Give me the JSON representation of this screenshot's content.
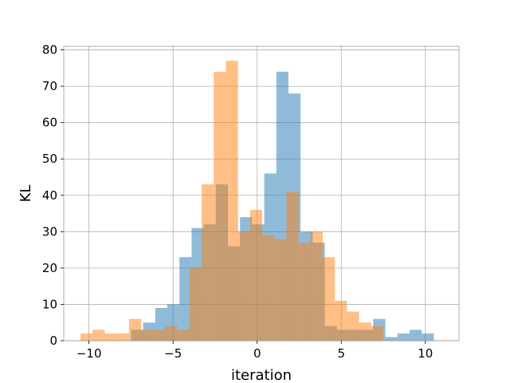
{
  "chart_data": {
    "type": "bar",
    "title": "",
    "xlabel": "iteration",
    "ylabel": "KL",
    "xlim": [
      -11.5,
      12.0
    ],
    "ylim": [
      0,
      81
    ],
    "xticks": [
      -10,
      -5,
      0,
      5,
      10
    ],
    "yticks": [
      0,
      10,
      20,
      30,
      40,
      50,
      60,
      70,
      80
    ],
    "grid": true,
    "legend": "none",
    "bin_width": 0.72,
    "series": [
      {
        "color": "#1f77b4",
        "opacity": 0.5,
        "bin_starts": [
          -7.5,
          -6.78,
          -6.06,
          -5.34,
          -4.62,
          -3.9,
          -3.18,
          -2.46,
          -1.74,
          -1.02,
          -0.3,
          0.42,
          1.14,
          1.86,
          2.58,
          3.3,
          4.02,
          4.74,
          5.46,
          6.18,
          6.9,
          7.62,
          8.34,
          9.06,
          9.78
        ],
        "counts": [
          3,
          5,
          9,
          10,
          23,
          31,
          32,
          43,
          26,
          34,
          32,
          46,
          74,
          68,
          30,
          27,
          4,
          3,
          3,
          3,
          6,
          1,
          2,
          3,
          2
        ]
      },
      {
        "color": "#ff7f0e",
        "opacity": 0.5,
        "bin_starts": [
          -10.5,
          -9.78,
          -9.06,
          -8.34,
          -7.62,
          -6.9,
          -6.18,
          -5.46,
          -4.74,
          -4.02,
          -3.3,
          -2.58,
          -1.86,
          -1.14,
          -0.42,
          0.3,
          1.02,
          1.74,
          2.46,
          3.18,
          3.9,
          4.62,
          5.34,
          6.06,
          6.78
        ],
        "counts": [
          2,
          3,
          2,
          2,
          6,
          3,
          3,
          4,
          3,
          20,
          43,
          74,
          77,
          30,
          36,
          29,
          28,
          41,
          27,
          30,
          23,
          11,
          8,
          5,
          4
        ]
      }
    ]
  }
}
